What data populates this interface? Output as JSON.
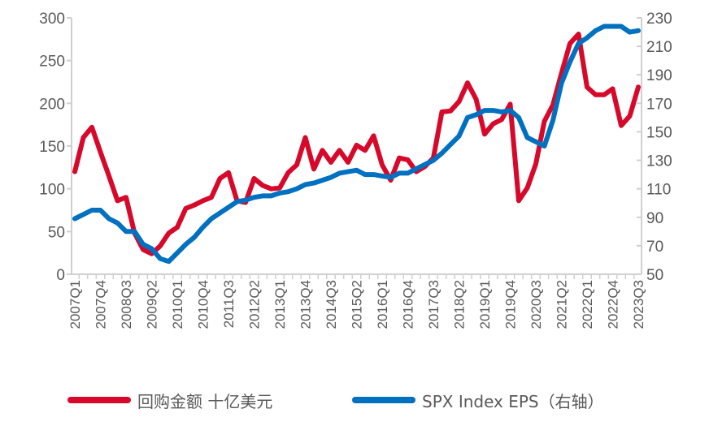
{
  "chart_data": {
    "type": "line",
    "title": "",
    "x": [
      "2007Q1",
      "2007Q2",
      "2007Q3",
      "2007Q4",
      "2008Q1",
      "2008Q2",
      "2008Q3",
      "2008Q4",
      "2009Q1",
      "2009Q2",
      "2009Q3",
      "2009Q4",
      "2010Q1",
      "2010Q2",
      "2010Q3",
      "2010Q4",
      "2011Q1",
      "2011Q2",
      "2011Q3",
      "2011Q4",
      "2012Q1",
      "2012Q2",
      "2012Q3",
      "2012Q4",
      "2013Q1",
      "2013Q2",
      "2013Q3",
      "2013Q4",
      "2014Q1",
      "2014Q2",
      "2014Q3",
      "2014Q4",
      "2015Q1",
      "2015Q2",
      "2015Q3",
      "2015Q4",
      "2016Q1",
      "2016Q2",
      "2016Q3",
      "2016Q4",
      "2017Q1",
      "2017Q2",
      "2017Q3",
      "2017Q4",
      "2018Q1",
      "2018Q2",
      "2018Q3",
      "2018Q4",
      "2019Q1",
      "2019Q2",
      "2019Q3",
      "2019Q4",
      "2020Q1",
      "2020Q2",
      "2020Q3",
      "2020Q4",
      "2021Q1",
      "2021Q2",
      "2021Q3",
      "2021Q4",
      "2022Q1",
      "2022Q2",
      "2022Q3",
      "2022Q4",
      "2023Q1",
      "2023Q2",
      "2023Q3"
    ],
    "x_tick_labels": [
      "2007Q1",
      "2007Q4",
      "2008Q3",
      "2009Q2",
      "2010Q1",
      "2010Q4",
      "2011Q3",
      "2012Q2",
      "2013Q1",
      "2013Q4",
      "2014Q3",
      "2015Q2",
      "2016Q1",
      "2016Q4",
      "2017Q3",
      "2018Q2",
      "2019Q1",
      "2019Q4",
      "2020Q3",
      "2021Q2",
      "2022Q1",
      "2022Q4",
      "2023Q3"
    ],
    "y_left": {
      "range": [
        0,
        300
      ],
      "ticks": [
        0,
        50,
        100,
        150,
        200,
        250,
        300
      ]
    },
    "y_right": {
      "range": [
        50,
        230
      ],
      "ticks": [
        50,
        70,
        90,
        110,
        130,
        150,
        170,
        190,
        210,
        230
      ]
    },
    "grid": false,
    "legend_position": "bottom",
    "series": [
      {
        "name": "回购金额 十亿美元",
        "axis": "left",
        "color": "#d7092b",
        "values": [
          120,
          160,
          172,
          143,
          115,
          86,
          90,
          48,
          29,
          24,
          33,
          48,
          55,
          77,
          81,
          86,
          90,
          112,
          119,
          86,
          84,
          112,
          104,
          100,
          101,
          119,
          128,
          160,
          123,
          145,
          131,
          145,
          131,
          151,
          145,
          162,
          128,
          110,
          136,
          134,
          120,
          126,
          136,
          190,
          191,
          202,
          224,
          205,
          164,
          176,
          181,
          199,
          86,
          101,
          129,
          179,
          198,
          235,
          270,
          281,
          219,
          210,
          210,
          217,
          174,
          185,
          219
        ]
      },
      {
        "name": "SPX Index EPS（右轴）",
        "axis": "right",
        "color": "#0070c0",
        "values": [
          89,
          92,
          95,
          95,
          89,
          86,
          80,
          80,
          71,
          68,
          61,
          59,
          65,
          71,
          76,
          83,
          89,
          93,
          97,
          101,
          102,
          104,
          105,
          105,
          107,
          108,
          110,
          113,
          114,
          116,
          118,
          121,
          122,
          123,
          120,
          120,
          119,
          118,
          121,
          121,
          124,
          127,
          130,
          135,
          141,
          147,
          160,
          162,
          165,
          165,
          164,
          165,
          160,
          146,
          143,
          140,
          158,
          184,
          199,
          212,
          216,
          221,
          224,
          224,
          224,
          220,
          221
        ]
      }
    ]
  },
  "legend": {
    "items": [
      {
        "label": "回购金额 十亿美元",
        "color": "#d7092b"
      },
      {
        "label": "SPX Index EPS（右轴）",
        "color": "#0070c0"
      }
    ]
  }
}
